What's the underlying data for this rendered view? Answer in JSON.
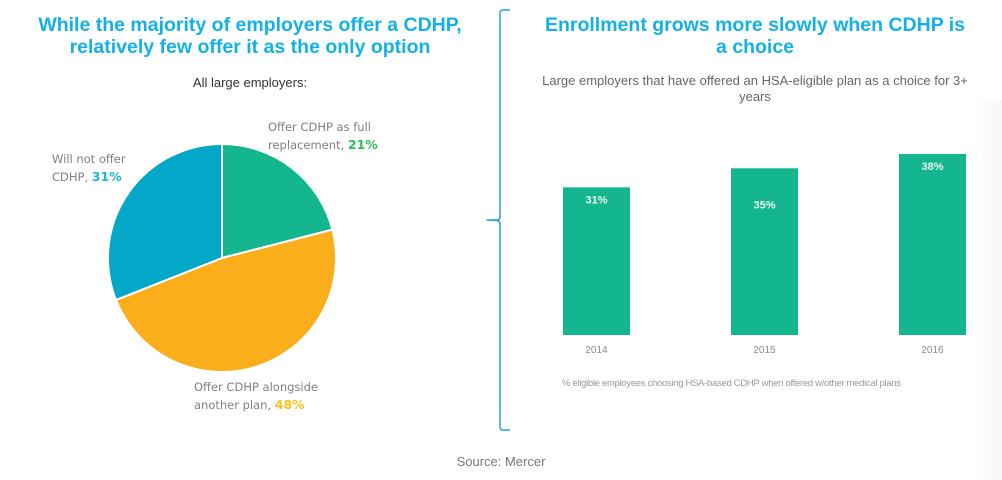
{
  "left_panel": {
    "title": "While the majority of employers offer a CDHP, relatively few offer it as the only option",
    "subtitle": "All large employers:"
  },
  "right_panel": {
    "title": "Enrollment grows more slowly when CDHP is a choice",
    "subtitle": "Large employers that have offered an HSA-eligible plan as a choice for 3+ years",
    "note": "% eligible employees choosing HSA-based CDHP when offered w/other medical plans"
  },
  "source": "Source: Mercer",
  "colors": {
    "title": "#12b2e8",
    "green": "#14b68f",
    "orange": "#fbae1b",
    "blue": "#03a8c9",
    "pct_green": "#2bbd5a",
    "pct_orange": "#f7c41a",
    "pct_blue": "#1eb6d6",
    "bracket": "#2a9fd8"
  },
  "chart_data": [
    {
      "type": "pie",
      "title": "All large employers:",
      "start": "12 o'clock, clockwise",
      "slices": [
        {
          "label_prefix": "Offer CDHP as full",
          "label_suffix": "replacement,",
          "value": 21,
          "value_text": "21%",
          "color": "#14b68f",
          "pct_color": "#2bbd5a"
        },
        {
          "label_prefix": "Offer CDHP alongside",
          "label_suffix": "another plan,",
          "value": 48,
          "value_text": "48%",
          "color": "#fbae1b",
          "pct_color": "#f7c41a"
        },
        {
          "label_prefix": "Will not offer",
          "label_suffix": "CDHP,",
          "value": 31,
          "value_text": "31%",
          "color": "#03a8c9",
          "pct_color": "#1eb6d6"
        }
      ]
    },
    {
      "type": "bar",
      "title": "Large employers that have offered an HSA-eligible plan as a choice for 3+ years",
      "categories": [
        "2014",
        "2015",
        "2016"
      ],
      "values": [
        31,
        35,
        38
      ],
      "value_labels": [
        "31%",
        "35%",
        "38%"
      ],
      "xlabel": "% eligible employees choosing HSA-based CDHP when offered w/other medical plans",
      "ylabel": "",
      "ylim": [
        0,
        38
      ],
      "grid": false,
      "color": "#14b68f"
    }
  ]
}
